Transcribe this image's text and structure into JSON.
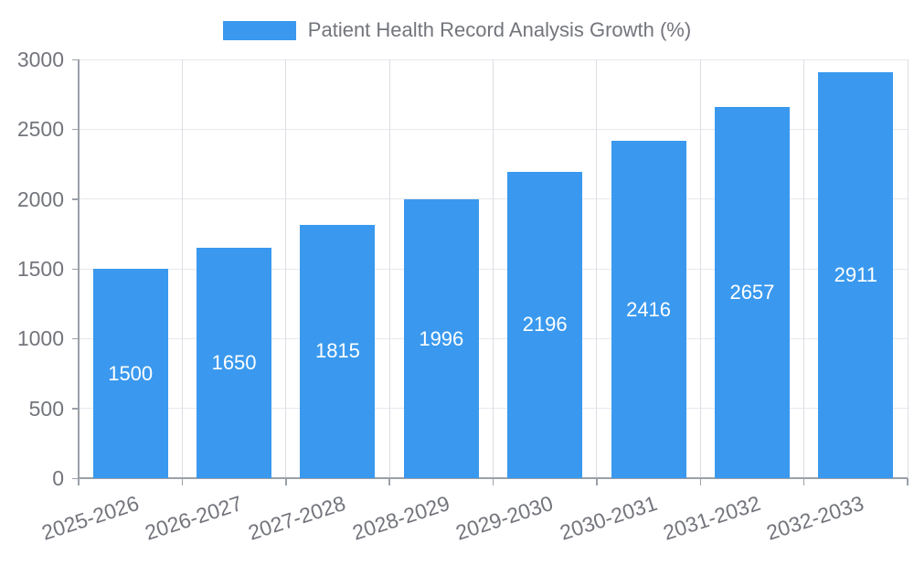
{
  "chart_data": {
    "type": "bar",
    "title": "Patient Health Record Analysis Growth (%)",
    "legend": {
      "label": "Patient Health Record Analysis Growth (%)",
      "position": "top-center"
    },
    "categories": [
      "2025-2026",
      "2026-2027",
      "2027-2028",
      "2028-2029",
      "2029-2030",
      "2030-2031",
      "2031-2032",
      "2032-2033"
    ],
    "series": [
      {
        "name": "Patient Health Record Analysis Growth (%)",
        "values": [
          1500,
          1650,
          1815,
          1996,
          2196,
          2416,
          2657,
          2911
        ]
      }
    ],
    "xlabel": "",
    "ylabel": "",
    "ylim": [
      0,
      3000
    ],
    "yticks": [
      0,
      500,
      1000,
      1500,
      2000,
      2500,
      3000
    ],
    "grid": true,
    "x_tick_rotation_deg": -18,
    "colors": {
      "bar": "#3A99EE",
      "value_label": "#FFFFFF",
      "axis_text": "#73757C",
      "axis_line": "#9BA0A8",
      "grid_line_horizontal": "#E6E8EE",
      "grid_line_vertical": "#DCDEE3",
      "background": "#FFFFFF"
    }
  }
}
